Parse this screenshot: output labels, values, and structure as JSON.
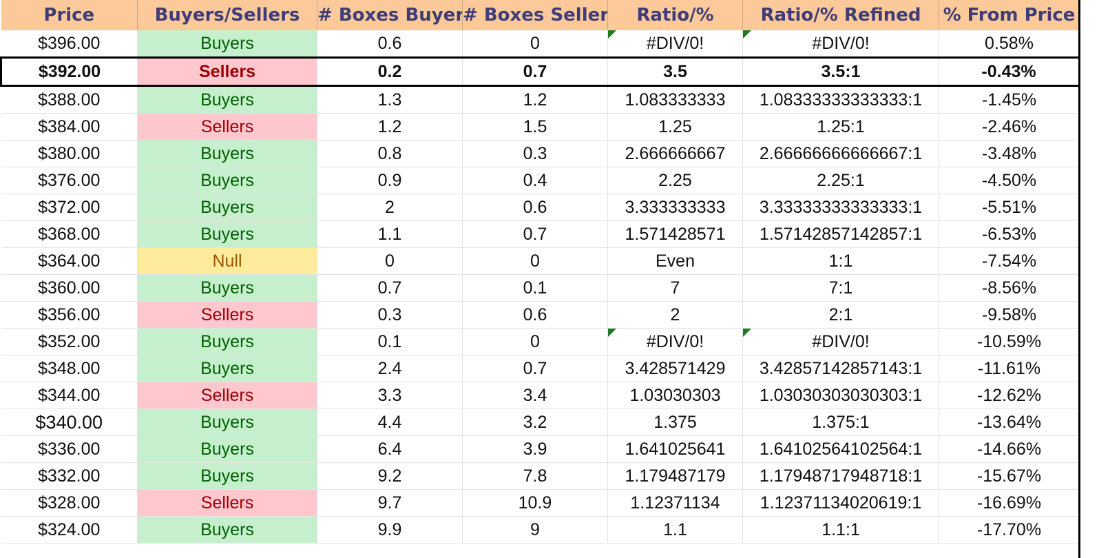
{
  "headers": [
    "Price",
    "Buyers/Sellers",
    "# Boxes Buyers",
    "# Boxes Sellers",
    "Ratio/%",
    "Ratio/% Refined",
    "% From Price"
  ],
  "rows": [
    {
      "price": "$396.00",
      "type": "Buyers",
      "buyers": "0.6",
      "sellers": "0",
      "ratio": "#DIV/0!",
      "refined": "#DIV/0!",
      "pct": "0.58%",
      "flag": true
    },
    {
      "price": "$392.00",
      "type": "Sellers",
      "buyers": "0.2",
      "sellers": "0.7",
      "ratio": "3.5",
      "refined": "3.5:1",
      "pct": "-0.43%",
      "highlight": true
    },
    {
      "price": "$388.00",
      "type": "Buyers",
      "buyers": "1.3",
      "sellers": "1.2",
      "ratio": "1.083333333",
      "refined": "1.08333333333333:1",
      "pct": "-1.45%"
    },
    {
      "price": "$384.00",
      "type": "Sellers",
      "buyers": "1.2",
      "sellers": "1.5",
      "ratio": "1.25",
      "refined": "1.25:1",
      "pct": "-2.46%"
    },
    {
      "price": "$380.00",
      "type": "Buyers",
      "buyers": "0.8",
      "sellers": "0.3",
      "ratio": "2.666666667",
      "refined": "2.66666666666667:1",
      "pct": "-3.48%"
    },
    {
      "price": "$376.00",
      "type": "Buyers",
      "buyers": "0.9",
      "sellers": "0.4",
      "ratio": "2.25",
      "refined": "2.25:1",
      "pct": "-4.50%"
    },
    {
      "price": "$372.00",
      "type": "Buyers",
      "buyers": "2",
      "sellers": "0.6",
      "ratio": "3.333333333",
      "refined": "3.33333333333333:1",
      "pct": "-5.51%"
    },
    {
      "price": "$368.00",
      "type": "Buyers",
      "buyers": "1.1",
      "sellers": "0.7",
      "ratio": "1.571428571",
      "refined": "1.57142857142857:1",
      "pct": "-6.53%"
    },
    {
      "price": "$364.00",
      "type": "Null",
      "buyers": "0",
      "sellers": "0",
      "ratio": "Even",
      "refined": "1:1",
      "pct": "-7.54%"
    },
    {
      "price": "$360.00",
      "type": "Buyers",
      "buyers": "0.7",
      "sellers": "0.1",
      "ratio": "7",
      "refined": "7:1",
      "pct": "-8.56%"
    },
    {
      "price": "$356.00",
      "type": "Sellers",
      "buyers": "0.3",
      "sellers": "0.6",
      "ratio": "2",
      "refined": "2:1",
      "pct": "-9.58%"
    },
    {
      "price": "$352.00",
      "type": "Buyers",
      "buyers": "0.1",
      "sellers": "0",
      "ratio": "#DIV/0!",
      "refined": "#DIV/0!",
      "pct": "-10.59%",
      "flag": true
    },
    {
      "price": "$348.00",
      "type": "Buyers",
      "buyers": "2.4",
      "sellers": "0.7",
      "ratio": "3.428571429",
      "refined": "3.42857142857143:1",
      "pct": "-11.61%"
    },
    {
      "price": "$344.00",
      "type": "Sellers",
      "buyers": "3.3",
      "sellers": "3.4",
      "ratio": "1.03030303",
      "refined": "1.03030303030303:1",
      "pct": "-12.62%"
    },
    {
      "price": "$340.00",
      "type": "Buyers",
      "buyers": "4.4",
      "sellers": "3.2",
      "ratio": "1.375",
      "refined": "1.375:1",
      "pct": "-13.64%",
      "bigprice": true
    },
    {
      "price": "$336.00",
      "type": "Buyers",
      "buyers": "6.4",
      "sellers": "3.9",
      "ratio": "1.641025641",
      "refined": "1.64102564102564:1",
      "pct": "-14.66%"
    },
    {
      "price": "$332.00",
      "type": "Buyers",
      "buyers": "9.2",
      "sellers": "7.8",
      "ratio": "1.179487179",
      "refined": "1.17948717948718:1",
      "pct": "-15.67%"
    },
    {
      "price": "$328.00",
      "type": "Sellers",
      "buyers": "9.7",
      "sellers": "10.9",
      "ratio": "1.12371134",
      "refined": "1.12371134020619:1",
      "pct": "-16.69%"
    },
    {
      "price": "$324.00",
      "type": "Buyers",
      "buyers": "9.9",
      "sellers": "9",
      "ratio": "1.1",
      "refined": "1.1:1",
      "pct": "-17.70%"
    }
  ]
}
